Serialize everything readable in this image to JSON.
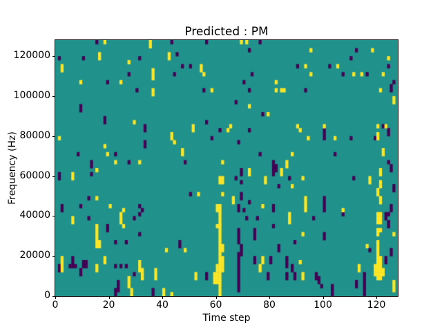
{
  "chart_data": {
    "type": "heatmap",
    "title": "Predicted : PM",
    "xlabel": "Time step",
    "ylabel": "Frequency (Hz)",
    "x_range": [
      0,
      128
    ],
    "y_range": [
      0,
      128000
    ],
    "grid_cols": 128,
    "grid_rows": 64,
    "x_ticks": [
      0,
      20,
      40,
      60,
      80,
      100,
      120
    ],
    "y_ticks": [
      0,
      20000,
      40000,
      60000,
      80000,
      100000,
      120000
    ],
    "legend": "none",
    "grid": "off",
    "colors": {
      "low": "#440154",
      "mid": "#21918c",
      "high": "#fde725"
    },
    "cells_high": [
      [
        18,
        63
      ],
      [
        35,
        63
      ],
      [
        35,
        62
      ],
      [
        69,
        63
      ],
      [
        71,
        63
      ],
      [
        2,
        57
      ],
      [
        2,
        56
      ],
      [
        16,
        60
      ],
      [
        16,
        59
      ],
      [
        27,
        58
      ],
      [
        42,
        60
      ],
      [
        42,
        59
      ],
      [
        36,
        56
      ],
      [
        36,
        55
      ],
      [
        36,
        54
      ],
      [
        9,
        53
      ],
      [
        24,
        53
      ],
      [
        36,
        51
      ],
      [
        36,
        50
      ],
      [
        29,
        43
      ],
      [
        54,
        57
      ],
      [
        54,
        56
      ],
      [
        55,
        55
      ],
      [
        58,
        51
      ],
      [
        82,
        53
      ],
      [
        82,
        51
      ],
      [
        84,
        51
      ],
      [
        72,
        47
      ],
      [
        79,
        45
      ],
      [
        51,
        42
      ],
      [
        65,
        42
      ],
      [
        95,
        61
      ],
      [
        118,
        61
      ],
      [
        124,
        59
      ],
      [
        93,
        57
      ],
      [
        105,
        57
      ],
      [
        95,
        55
      ],
      [
        111,
        55
      ],
      [
        114,
        55
      ],
      [
        122,
        55
      ],
      [
        85,
        51
      ],
      [
        121,
        51
      ],
      [
        126,
        49
      ],
      [
        126,
        48
      ],
      [
        90,
        42
      ],
      [
        100,
        42
      ],
      [
        120,
        42
      ],
      [
        123,
        42
      ],
      [
        1,
        39
      ],
      [
        18,
        37
      ],
      [
        19,
        35
      ],
      [
        22,
        33
      ],
      [
        31,
        33
      ],
      [
        15,
        31
      ],
      [
        6,
        30
      ],
      [
        6,
        29
      ],
      [
        15,
        24
      ],
      [
        20,
        22
      ],
      [
        25,
        21
      ],
      [
        51,
        41
      ],
      [
        64,
        41
      ],
      [
        43,
        40
      ],
      [
        43,
        39
      ],
      [
        44,
        38
      ],
      [
        47,
        36
      ],
      [
        47,
        35
      ],
      [
        62,
        33
      ],
      [
        84,
        31
      ],
      [
        84,
        30
      ],
      [
        72,
        31
      ],
      [
        72,
        30
      ],
      [
        61,
        29
      ],
      [
        62,
        29
      ],
      [
        61,
        28
      ],
      [
        62,
        28
      ],
      [
        78,
        29
      ],
      [
        78,
        28
      ],
      [
        53,
        25
      ],
      [
        62,
        25
      ],
      [
        66,
        24
      ],
      [
        66,
        23
      ],
      [
        60,
        22
      ],
      [
        61,
        22
      ],
      [
        60,
        21
      ],
      [
        61,
        21
      ],
      [
        77,
        22
      ],
      [
        91,
        41
      ],
      [
        94,
        39
      ],
      [
        104,
        39
      ],
      [
        120,
        40
      ],
      [
        120,
        39
      ],
      [
        88,
        35
      ],
      [
        122,
        36
      ],
      [
        122,
        35
      ],
      [
        86,
        33
      ],
      [
        86,
        32
      ],
      [
        121,
        31
      ],
      [
        121,
        30
      ],
      [
        92,
        29
      ],
      [
        117,
        29
      ],
      [
        117,
        28
      ],
      [
        88,
        27
      ],
      [
        121,
        28
      ],
      [
        121,
        27
      ],
      [
        120,
        26
      ],
      [
        120,
        25
      ],
      [
        121,
        24
      ],
      [
        121,
        23
      ],
      [
        93,
        24
      ],
      [
        93,
        23
      ],
      [
        93,
        22
      ],
      [
        93,
        21
      ],
      [
        107,
        21
      ],
      [
        24,
        20
      ],
      [
        24,
        19
      ],
      [
        24,
        18
      ],
      [
        6,
        19
      ],
      [
        6,
        18
      ],
      [
        25,
        17
      ],
      [
        15,
        17
      ],
      [
        15,
        16
      ],
      [
        15,
        15
      ],
      [
        15,
        14
      ],
      [
        15,
        13
      ],
      [
        15,
        12
      ],
      [
        16,
        13
      ],
      [
        16,
        12
      ],
      [
        41,
        11
      ],
      [
        2,
        9
      ],
      [
        2,
        8
      ],
      [
        2,
        7
      ],
      [
        2,
        6
      ],
      [
        18,
        9
      ],
      [
        18,
        8
      ],
      [
        15,
        7
      ],
      [
        15,
        6
      ],
      [
        31,
        8
      ],
      [
        31,
        7
      ],
      [
        31,
        6
      ],
      [
        32,
        6
      ],
      [
        32,
        5
      ],
      [
        32,
        4
      ],
      [
        37,
        6
      ],
      [
        37,
        5
      ],
      [
        37,
        4
      ],
      [
        27,
        4
      ],
      [
        27,
        3
      ],
      [
        27,
        2
      ],
      [
        28,
        1
      ],
      [
        28,
        0
      ],
      [
        40,
        1
      ],
      [
        40,
        0
      ],
      [
        43,
        0
      ],
      [
        61,
        20
      ],
      [
        61,
        19
      ],
      [
        61,
        18
      ],
      [
        60,
        17
      ],
      [
        61,
        17
      ],
      [
        61,
        16
      ],
      [
        61,
        15
      ],
      [
        61,
        14
      ],
      [
        61,
        13
      ],
      [
        61,
        12
      ],
      [
        62,
        12
      ],
      [
        61,
        11
      ],
      [
        62,
        11
      ],
      [
        61,
        10
      ],
      [
        61,
        9
      ],
      [
        62,
        9
      ],
      [
        61,
        8
      ],
      [
        62,
        8
      ],
      [
        60,
        7
      ],
      [
        61,
        7
      ],
      [
        62,
        7
      ],
      [
        60,
        6
      ],
      [
        61,
        6
      ],
      [
        62,
        6
      ],
      [
        59,
        5
      ],
      [
        60,
        5
      ],
      [
        61,
        5
      ],
      [
        59,
        4
      ],
      [
        60,
        4
      ],
      [
        61,
        4
      ],
      [
        59,
        3
      ],
      [
        60,
        3
      ],
      [
        61,
        3
      ],
      [
        61,
        2
      ],
      [
        61,
        1
      ],
      [
        61,
        0
      ],
      [
        48,
        11
      ],
      [
        52,
        5
      ],
      [
        52,
        4
      ],
      [
        77,
        9
      ],
      [
        77,
        8
      ],
      [
        76,
        7
      ],
      [
        76,
        6
      ],
      [
        87,
        20
      ],
      [
        87,
        19
      ],
      [
        87,
        18
      ],
      [
        120,
        20
      ],
      [
        121,
        20
      ],
      [
        120,
        19
      ],
      [
        121,
        19
      ],
      [
        120,
        18
      ],
      [
        121,
        18
      ],
      [
        120,
        16
      ],
      [
        121,
        16
      ],
      [
        120,
        15
      ],
      [
        92,
        15
      ],
      [
        126,
        15
      ],
      [
        116,
        12
      ],
      [
        120,
        13
      ],
      [
        120,
        12
      ],
      [
        120,
        11
      ],
      [
        120,
        10
      ],
      [
        120,
        9
      ],
      [
        121,
        9
      ],
      [
        119,
        7
      ],
      [
        120,
        8
      ],
      [
        121,
        8
      ],
      [
        119,
        6
      ],
      [
        120,
        7
      ],
      [
        121,
        7
      ],
      [
        122,
        6
      ],
      [
        119,
        5
      ],
      [
        120,
        6
      ],
      [
        121,
        6
      ],
      [
        122,
        5
      ],
      [
        120,
        5
      ],
      [
        121,
        5
      ],
      [
        120,
        4
      ],
      [
        121,
        4
      ],
      [
        91,
        8
      ],
      [
        92,
        5
      ],
      [
        92,
        4
      ],
      [
        113,
        7
      ],
      [
        113,
        6
      ],
      [
        126,
        3
      ],
      [
        126,
        2
      ],
      [
        126,
        1
      ]
    ],
    "cells_low": [
      [
        15,
        63
      ],
      [
        43,
        63
      ],
      [
        56,
        63
      ],
      [
        76,
        63
      ],
      [
        1,
        59
      ],
      [
        10,
        59
      ],
      [
        31,
        59
      ],
      [
        27,
        55
      ],
      [
        19,
        53
      ],
      [
        30,
        51
      ],
      [
        9,
        47
      ],
      [
        9,
        46
      ],
      [
        18,
        44
      ],
      [
        18,
        43
      ],
      [
        33,
        42
      ],
      [
        72,
        61
      ],
      [
        45,
        60
      ],
      [
        47,
        57
      ],
      [
        50,
        57
      ],
      [
        44,
        55
      ],
      [
        73,
        55
      ],
      [
        70,
        53
      ],
      [
        72,
        51
      ],
      [
        55,
        51
      ],
      [
        67,
        48
      ],
      [
        77,
        45
      ],
      [
        56,
        43
      ],
      [
        112,
        61
      ],
      [
        110,
        59
      ],
      [
        90,
        57
      ],
      [
        102,
        57
      ],
      [
        124,
        57
      ],
      [
        107,
        55
      ],
      [
        116,
        55
      ],
      [
        126,
        53
      ],
      [
        93,
        51
      ],
      [
        125,
        52
      ],
      [
        125,
        51
      ],
      [
        122,
        42
      ],
      [
        33,
        41
      ],
      [
        33,
        38
      ],
      [
        33,
        37
      ],
      [
        8,
        35
      ],
      [
        22,
        35
      ],
      [
        13,
        33
      ],
      [
        13,
        32
      ],
      [
        27,
        33
      ],
      [
        13,
        30
      ],
      [
        1,
        30
      ],
      [
        1,
        29
      ],
      [
        12,
        24
      ],
      [
        2,
        22
      ],
      [
        2,
        21
      ],
      [
        9,
        22
      ],
      [
        31,
        22
      ],
      [
        32,
        21
      ],
      [
        61,
        41
      ],
      [
        72,
        41
      ],
      [
        58,
        39
      ],
      [
        68,
        38
      ],
      [
        76,
        35
      ],
      [
        48,
        33
      ],
      [
        81,
        33
      ],
      [
        81,
        32
      ],
      [
        82,
        32
      ],
      [
        81,
        31
      ],
      [
        82,
        31
      ],
      [
        81,
        30
      ],
      [
        69,
        31
      ],
      [
        69,
        30
      ],
      [
        67,
        29
      ],
      [
        69,
        28
      ],
      [
        83,
        27
      ],
      [
        50,
        25
      ],
      [
        69,
        25
      ],
      [
        69,
        24
      ],
      [
        72,
        23
      ],
      [
        68,
        22
      ],
      [
        68,
        21
      ],
      [
        70,
        21
      ],
      [
        81,
        22
      ],
      [
        81,
        21
      ],
      [
        100,
        41
      ],
      [
        100,
        40
      ],
      [
        100,
        39
      ],
      [
        110,
        39
      ],
      [
        119,
        39
      ],
      [
        124,
        41
      ],
      [
        124,
        40
      ],
      [
        104,
        35
      ],
      [
        124,
        33
      ],
      [
        125,
        32
      ],
      [
        125,
        31
      ],
      [
        87,
        29
      ],
      [
        111,
        29
      ],
      [
        126,
        27
      ],
      [
        126,
        26
      ],
      [
        100,
        24
      ],
      [
        100,
        23
      ],
      [
        100,
        22
      ],
      [
        100,
        21
      ],
      [
        125,
        22
      ],
      [
        125,
        21
      ],
      [
        31,
        20
      ],
      [
        12,
        19
      ],
      [
        29,
        19
      ],
      [
        19,
        17
      ],
      [
        19,
        16
      ],
      [
        31,
        15
      ],
      [
        22,
        13
      ],
      [
        26,
        13
      ],
      [
        5,
        7
      ],
      [
        6,
        9
      ],
      [
        6,
        8
      ],
      [
        6,
        7
      ],
      [
        7,
        7
      ],
      [
        10,
        8
      ],
      [
        10,
        7
      ],
      [
        11,
        8
      ],
      [
        11,
        7
      ],
      [
        1,
        7
      ],
      [
        1,
        6
      ],
      [
        9,
        6
      ],
      [
        9,
        5
      ],
      [
        22,
        7
      ],
      [
        24,
        7
      ],
      [
        26,
        7
      ],
      [
        29,
        5
      ],
      [
        23,
        3
      ],
      [
        23,
        2
      ],
      [
        23,
        1
      ],
      [
        22,
        1
      ],
      [
        22,
        0
      ],
      [
        36,
        1
      ],
      [
        36,
        0
      ],
      [
        68,
        16
      ],
      [
        68,
        15
      ],
      [
        68,
        14
      ],
      [
        68,
        13
      ],
      [
        69,
        12
      ],
      [
        69,
        11
      ],
      [
        68,
        10
      ],
      [
        69,
        10
      ],
      [
        68,
        9
      ],
      [
        68,
        8
      ],
      [
        68,
        7
      ],
      [
        68,
        6
      ],
      [
        68,
        5
      ],
      [
        68,
        4
      ],
      [
        68,
        3
      ],
      [
        68,
        2
      ],
      [
        68,
        1
      ],
      [
        46,
        13
      ],
      [
        46,
        12
      ],
      [
        56,
        5
      ],
      [
        56,
        4
      ],
      [
        71,
        19
      ],
      [
        75,
        19
      ],
      [
        74,
        16
      ],
      [
        74,
        15
      ],
      [
        74,
        14
      ],
      [
        74,
        9
      ],
      [
        74,
        8
      ],
      [
        80,
        9
      ],
      [
        80,
        8
      ],
      [
        79,
        5
      ],
      [
        79,
        4
      ],
      [
        81,
        17
      ],
      [
        83,
        12
      ],
      [
        83,
        11
      ],
      [
        96,
        19
      ],
      [
        107,
        20
      ],
      [
        123,
        20
      ],
      [
        124,
        20
      ],
      [
        123,
        19
      ],
      [
        124,
        18
      ],
      [
        124,
        17
      ],
      [
        100,
        15
      ],
      [
        100,
        14
      ],
      [
        89,
        13
      ],
      [
        117,
        11
      ],
      [
        123,
        9
      ],
      [
        123,
        8
      ],
      [
        125,
        11
      ],
      [
        125,
        10
      ],
      [
        86,
        9
      ],
      [
        86,
        8
      ],
      [
        86,
        7
      ],
      [
        88,
        7
      ],
      [
        88,
        6
      ],
      [
        86,
        5
      ],
      [
        86,
        4
      ],
      [
        89,
        5
      ],
      [
        89,
        4
      ],
      [
        97,
        5
      ],
      [
        97,
        4
      ],
      [
        98,
        4
      ],
      [
        98,
        3
      ],
      [
        99,
        2
      ],
      [
        103,
        2
      ],
      [
        103,
        1
      ],
      [
        103,
        0
      ],
      [
        112,
        3
      ],
      [
        112,
        2
      ],
      [
        115,
        5
      ],
      [
        115,
        4
      ],
      [
        115,
        3
      ],
      [
        115,
        2
      ],
      [
        115,
        1
      ],
      [
        115,
        0
      ]
    ]
  }
}
